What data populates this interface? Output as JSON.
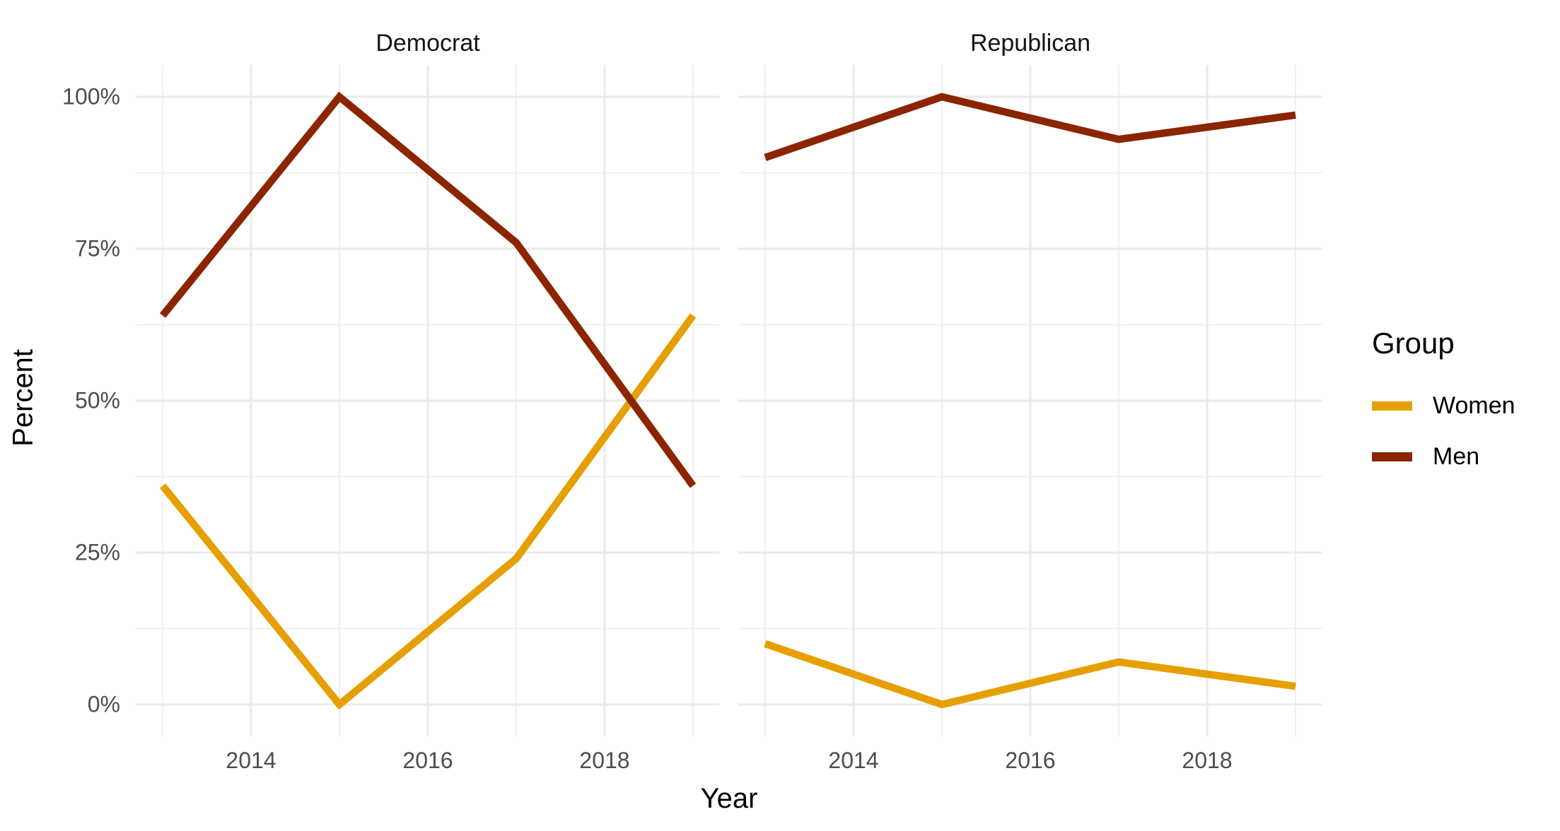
{
  "chart_data": {
    "type": "line",
    "title": "",
    "xlabel": "Year",
    "ylabel": "Percent",
    "x": [
      2013,
      2015,
      2017,
      2019
    ],
    "xlim": [
      2013,
      2019
    ],
    "ylim": [
      0,
      100
    ],
    "grid": true,
    "legend_position": "right",
    "y_major_ticks": [
      {
        "value": 0,
        "label": "0%"
      },
      {
        "value": 25,
        "label": "25%"
      },
      {
        "value": 50,
        "label": "50%"
      },
      {
        "value": 75,
        "label": "75%"
      },
      {
        "value": 100,
        "label": "100%"
      }
    ],
    "y_minor_ticks": [
      12.5,
      37.5,
      62.5,
      87.5
    ],
    "x_major_ticks": [
      {
        "value": 2014,
        "label": "2014"
      },
      {
        "value": 2016,
        "label": "2016"
      },
      {
        "value": 2018,
        "label": "2018"
      }
    ],
    "x_minor_ticks": [
      2013,
      2015,
      2017,
      2019
    ],
    "facets": [
      {
        "label": "Democrat",
        "series": [
          {
            "name": "Women",
            "color": "#E69F00",
            "values": [
              36,
              0,
              24,
              64
            ]
          },
          {
            "name": "Men",
            "color": "#8B2500",
            "values": [
              64,
              100,
              76,
              36
            ]
          }
        ]
      },
      {
        "label": "Republican",
        "series": [
          {
            "name": "Women",
            "color": "#E69F00",
            "values": [
              10,
              0,
              7,
              3
            ]
          },
          {
            "name": "Men",
            "color": "#8B2500",
            "values": [
              90,
              100,
              93,
              97
            ]
          }
        ]
      }
    ],
    "legend": {
      "title": "Group",
      "entries": [
        {
          "label": "Women",
          "color": "#E69F00"
        },
        {
          "label": "Men",
          "color": "#8B2500"
        }
      ]
    },
    "style": {
      "background": "#FFFFFF",
      "grid_major_color": "#EBEBEB",
      "grid_minor_color": "#F0F0F0",
      "tick_text_color": "#4D4D4D",
      "title_text_color": "#000000",
      "strip_text_color": "#141414",
      "line_width": 10.5
    }
  }
}
